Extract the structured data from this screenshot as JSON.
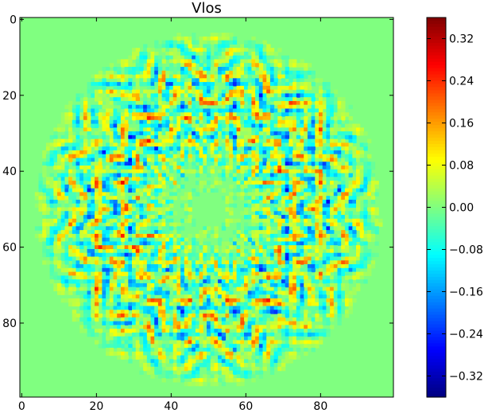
{
  "chart_data": {
    "type": "heatmap",
    "title": "Vlos",
    "xlabel": "",
    "ylabel": "",
    "grid_size": [
      100,
      100
    ],
    "xlim": [
      0,
      99
    ],
    "ylim": [
      99,
      0
    ],
    "x_ticks": [
      "0",
      "20",
      "40",
      "60",
      "80"
    ],
    "y_ticks": [
      "0",
      "20",
      "40",
      "60",
      "80"
    ],
    "colormap": "jet",
    "colorbar": {
      "range": [
        -0.36,
        0.36
      ],
      "ticks": [
        {
          "value": 0.32,
          "label": "0.32"
        },
        {
          "value": 0.24,
          "label": "0.24"
        },
        {
          "value": 0.16,
          "label": "0.16"
        },
        {
          "value": 0.08,
          "label": "0.08"
        },
        {
          "value": 0.0,
          "label": "0.00"
        },
        {
          "value": -0.08,
          "label": "−0.08"
        },
        {
          "value": -0.16,
          "label": "−0.16"
        },
        {
          "value": -0.24,
          "label": "−0.24"
        },
        {
          "value": -0.32,
          "label": "−0.32"
        }
      ]
    },
    "field": {
      "center": [
        50,
        50
      ],
      "outer_radius": 47,
      "inner_radius": 8,
      "spokes": 12,
      "background_value": 0.0
    }
  }
}
